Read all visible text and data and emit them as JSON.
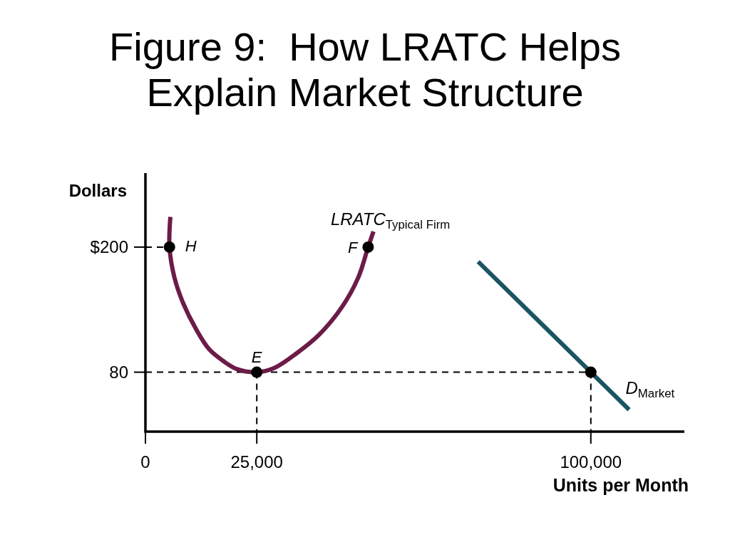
{
  "chart_data": {
    "type": "line",
    "title": "Figure 9:  How LRATC Helps Explain Market Structure",
    "xlabel": "Units per Month",
    "ylabel": "Dollars",
    "xlim": [
      0,
      121000
    ],
    "ylim": [
      23,
      271
    ],
    "xticks": [
      0,
      {
        "value": 25000,
        "label": "25,000"
      },
      {
        "value": 100000,
        "label": "100,000"
      }
    ],
    "yticks": [
      80,
      {
        "value": 200,
        "label": "$200"
      }
    ],
    "series": [
      {
        "type": "line",
        "color": "#000000",
        "line_style": "dashed",
        "x": [
          0,
          5400
        ],
        "values": [
          200,
          200
        ]
      },
      {
        "type": "line",
        "color": "#000000",
        "line_style": "dashed",
        "x": [
          0,
          100000
        ],
        "values": [
          80,
          80
        ]
      },
      {
        "type": "line",
        "color": "#000000",
        "line_style": "dashed",
        "x": [
          25000,
          25000
        ],
        "values": [
          80,
          23
        ]
      },
      {
        "type": "line",
        "color": "#000000",
        "line_style": "dashed",
        "x": [
          100000,
          100000
        ],
        "values": [
          80,
          23
        ]
      },
      {
        "name": "LRATC$_{Typical Firm}$",
        "color": "#6b1c47",
        "x": [
          5600,
          5400,
          6500,
          8300,
          11400,
          14300,
          17400,
          20500,
          25000,
          28900,
          33900,
          39000,
          44200,
          47800,
          50000,
          51200
        ],
        "values": [
          229,
          200,
          171,
          148,
          121,
          102,
          91,
          83,
          80,
          84,
          98,
          116,
          143,
          171,
          200,
          215
        ]
      },
      {
        "name": "D$_{Market}$",
        "color": "#1b5463",
        "x": [
          74700,
          108600
        ],
        "values": [
          186,
          44
        ]
      },
      {
        "type": "scatter",
        "color": "#000000",
        "marker": "circle",
        "x": [
          5400,
          50000,
          25000,
          100000
        ],
        "values": [
          200,
          200,
          80,
          80
        ]
      }
    ],
    "annotations": [
      {
        "text": "H",
        "x": 5400,
        "y": 200
      },
      {
        "text": "F",
        "x": 50000,
        "y": 200
      },
      {
        "text": "E",
        "x": 25000,
        "y": 80
      }
    ]
  }
}
